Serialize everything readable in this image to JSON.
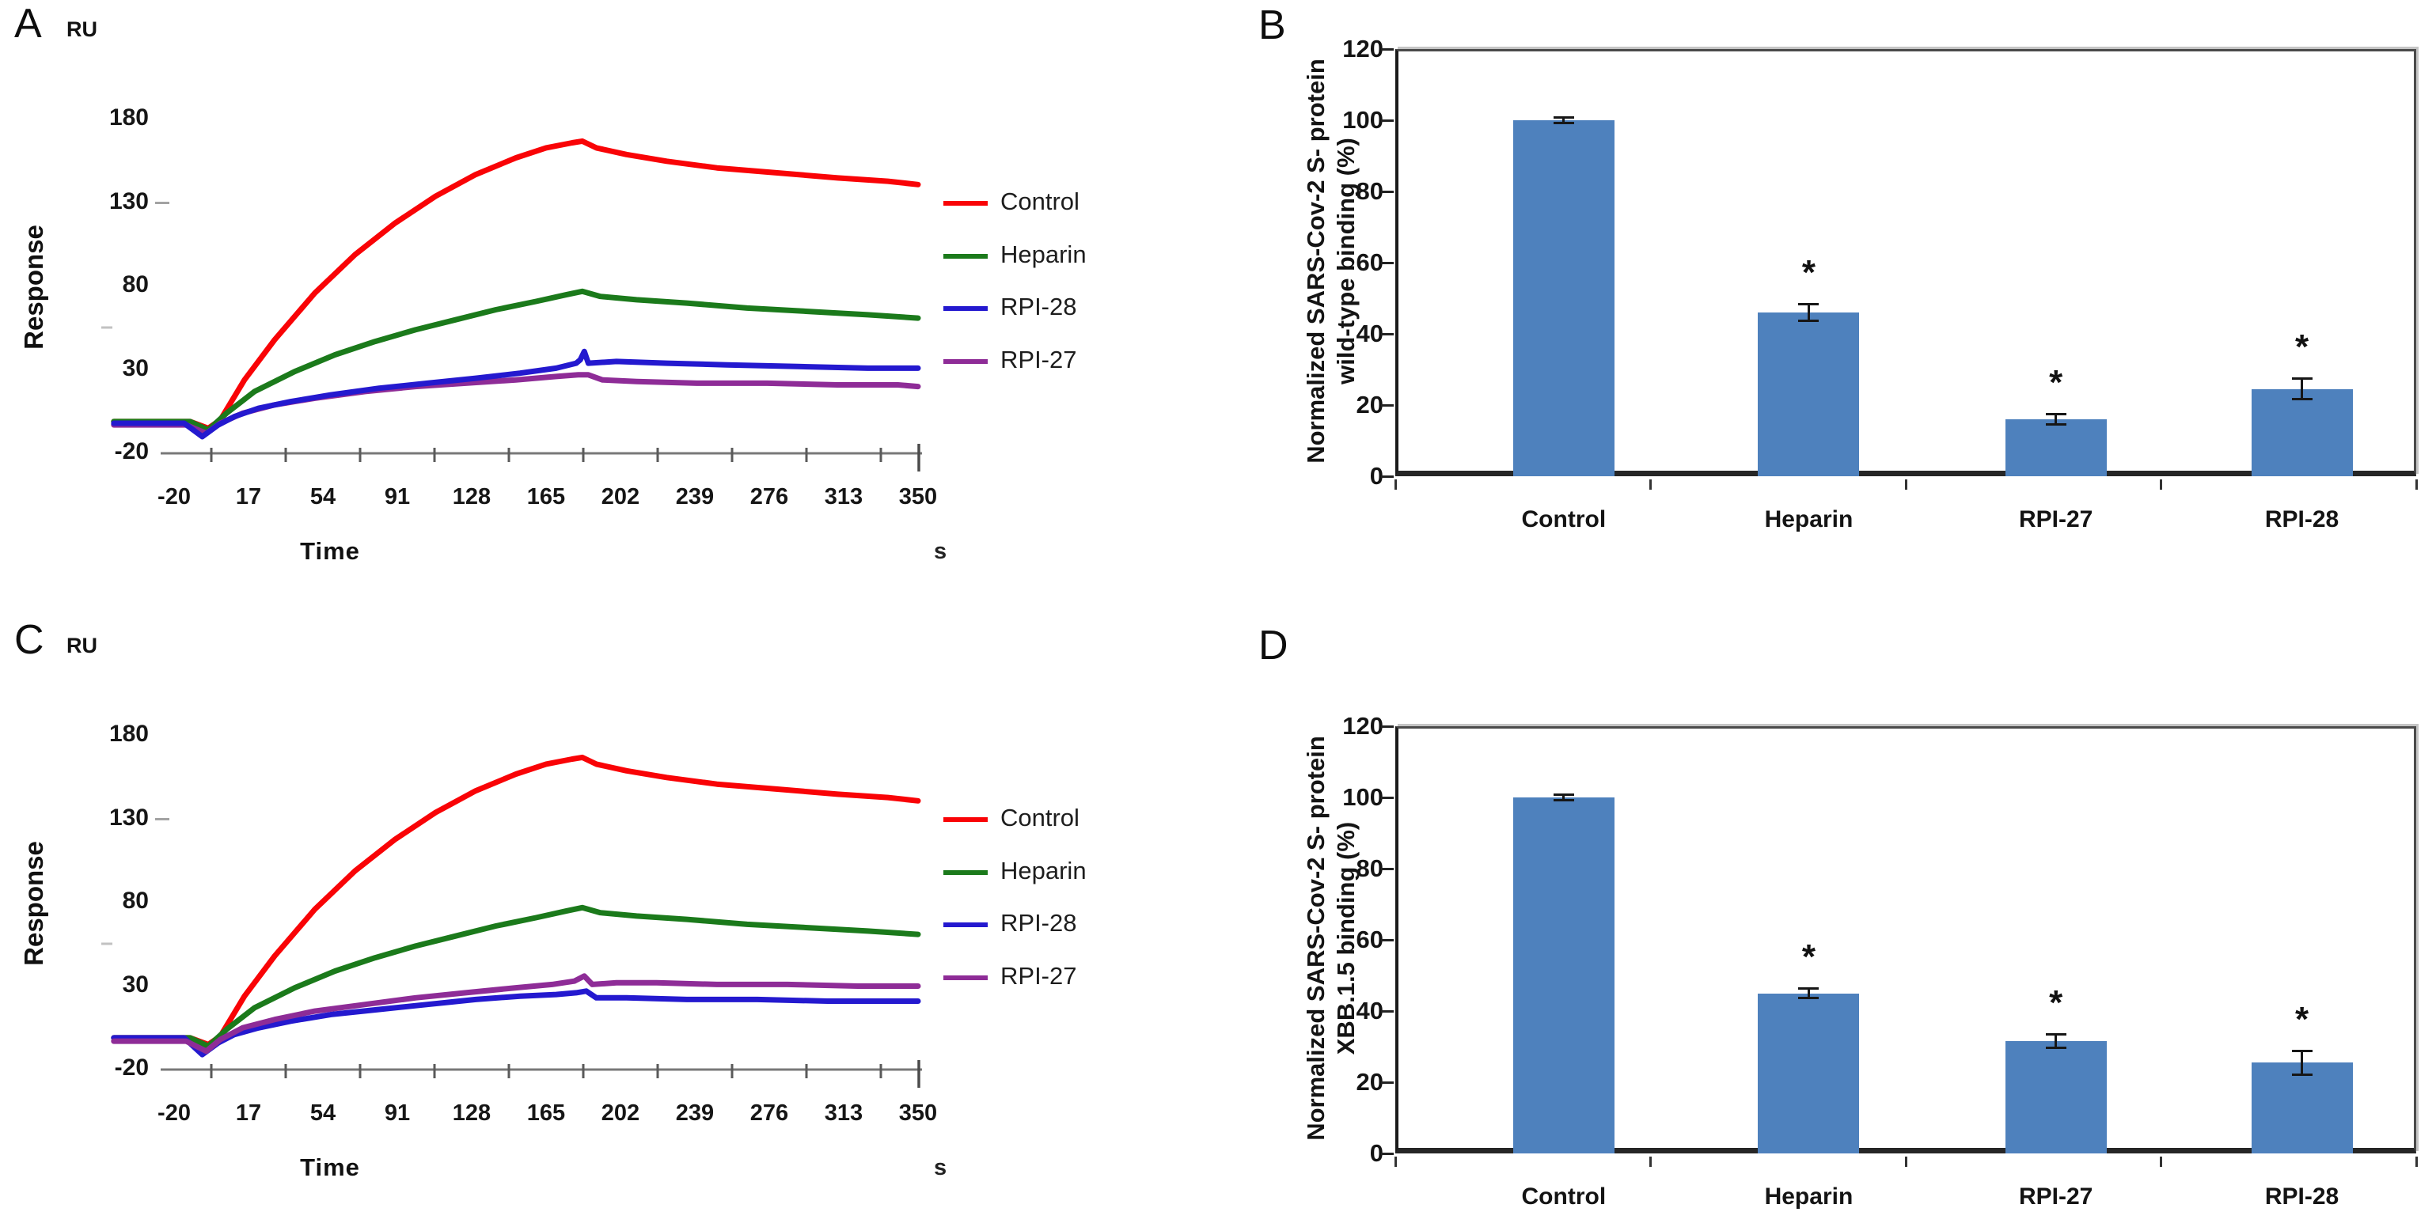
{
  "chart_data": [
    {
      "id": "A",
      "type": "line",
      "panel_label": "A",
      "y_unit_label": "RU",
      "ylabel": "Response",
      "xlabel": "Time",
      "x_unit_label": "s",
      "ylim": [
        -20,
        180
      ],
      "yticks": [
        180,
        130,
        80,
        30,
        -20
      ],
      "xticks": [
        -20,
        17,
        54,
        91,
        128,
        165,
        202,
        239,
        276,
        313,
        350
      ],
      "grid": false,
      "legend_position": "right",
      "legend_order": [
        "Control",
        "Heparin",
        "RPI-28",
        "RPI-27"
      ],
      "draw_order": [
        "Control",
        "Heparin",
        "RPI-27",
        "RPI-28"
      ],
      "series": [
        {
          "name": "Control",
          "color": "#f90306",
          "points": [
            [
              -50,
              -1
            ],
            [
              -12,
              -1
            ],
            [
              -3,
              -5
            ],
            [
              3,
              0
            ],
            [
              15,
              24
            ],
            [
              30,
              48
            ],
            [
              50,
              76
            ],
            [
              70,
              99
            ],
            [
              90,
              118
            ],
            [
              110,
              134
            ],
            [
              130,
              147
            ],
            [
              150,
              157
            ],
            [
              165,
              163
            ],
            [
              178,
              166
            ],
            [
              183,
              167
            ],
            [
              190,
              163
            ],
            [
              205,
              159
            ],
            [
              225,
              155
            ],
            [
              250,
              151
            ],
            [
              280,
              148
            ],
            [
              310,
              145
            ],
            [
              335,
              143
            ],
            [
              350,
              141
            ]
          ]
        },
        {
          "name": "Heparin",
          "color": "#1b7a1b",
          "points": [
            [
              -50,
              -1
            ],
            [
              -12,
              -1
            ],
            [
              -3,
              -6
            ],
            [
              6,
              4
            ],
            [
              20,
              17
            ],
            [
              40,
              29
            ],
            [
              60,
              39
            ],
            [
              80,
              47
            ],
            [
              100,
              54
            ],
            [
              120,
              60
            ],
            [
              140,
              66
            ],
            [
              160,
              71
            ],
            [
              175,
              75
            ],
            [
              183,
              77
            ],
            [
              192,
              74
            ],
            [
              210,
              72
            ],
            [
              235,
              70
            ],
            [
              265,
              67
            ],
            [
              295,
              65
            ],
            [
              325,
              63
            ],
            [
              350,
              61
            ]
          ]
        },
        {
          "name": "RPI-28",
          "color": "#2419cf",
          "points": [
            [
              -50,
              -2
            ],
            [
              -15,
              -2
            ],
            [
              -6,
              -10
            ],
            [
              2,
              -3
            ],
            [
              10,
              2
            ],
            [
              22,
              7
            ],
            [
              38,
              11
            ],
            [
              58,
              15
            ],
            [
              82,
              19
            ],
            [
              106,
              22
            ],
            [
              130,
              25
            ],
            [
              152,
              28
            ],
            [
              170,
              31
            ],
            [
              180,
              34
            ],
            [
              182,
              36
            ],
            [
              184,
              41
            ],
            [
              186,
              34
            ],
            [
              200,
              35
            ],
            [
              225,
              34
            ],
            [
              255,
              33
            ],
            [
              290,
              32
            ],
            [
              325,
              31
            ],
            [
              350,
              31
            ]
          ]
        },
        {
          "name": "RPI-27",
          "color": "#8e2c97",
          "points": [
            [
              -50,
              -3
            ],
            [
              -14,
              -3
            ],
            [
              -4,
              -8
            ],
            [
              3,
              -2
            ],
            [
              14,
              4
            ],
            [
              30,
              9
            ],
            [
              50,
              13
            ],
            [
              75,
              17
            ],
            [
              100,
              20
            ],
            [
              125,
              22
            ],
            [
              150,
              24
            ],
            [
              170,
              26
            ],
            [
              181,
              27
            ],
            [
              186,
              27
            ],
            [
              193,
              24
            ],
            [
              210,
              23
            ],
            [
              240,
              22
            ],
            [
              275,
              22
            ],
            [
              310,
              21
            ],
            [
              340,
              21
            ],
            [
              350,
              20
            ]
          ]
        }
      ]
    },
    {
      "id": "B",
      "type": "bar",
      "panel_label": "B",
      "ylabel_lines": [
        "Normalized SARS-Cov-2 S- protein",
        "wild-type binding (%)"
      ],
      "ylim": [
        0,
        120
      ],
      "yticks": [
        120,
        100,
        80,
        60,
        40,
        20,
        0
      ],
      "categories": [
        "Control",
        "Heparin",
        "RPI-27",
        "RPI-28"
      ],
      "values": [
        100,
        46,
        16,
        24.5
      ],
      "errors": [
        0.8,
        2.5,
        1.5,
        3
      ],
      "significance": [
        "",
        "*",
        "*",
        "*"
      ],
      "bar_color": "#4e81bd",
      "grid": false
    },
    {
      "id": "C",
      "type": "line",
      "panel_label": "C",
      "y_unit_label": "RU",
      "ylabel": "Response",
      "xlabel": "Time",
      "x_unit_label": "s",
      "ylim": [
        -20,
        180
      ],
      "yticks": [
        180,
        130,
        80,
        30,
        -20
      ],
      "xticks": [
        -20,
        17,
        54,
        91,
        128,
        165,
        202,
        239,
        276,
        313,
        350
      ],
      "grid": false,
      "legend_position": "right",
      "legend_order": [
        "Control",
        "Heparin",
        "RPI-28",
        "RPI-27"
      ],
      "draw_order": [
        "Control",
        "Heparin",
        "RPI-28",
        "RPI-27"
      ],
      "series": [
        {
          "name": "Control",
          "color": "#f90306",
          "points": [
            [
              -50,
              -1
            ],
            [
              -12,
              -1
            ],
            [
              -3,
              -5
            ],
            [
              3,
              0
            ],
            [
              15,
              24
            ],
            [
              30,
              48
            ],
            [
              50,
              76
            ],
            [
              70,
              99
            ],
            [
              90,
              118
            ],
            [
              110,
              134
            ],
            [
              130,
              147
            ],
            [
              150,
              157
            ],
            [
              165,
              163
            ],
            [
              178,
              166
            ],
            [
              183,
              167
            ],
            [
              190,
              163
            ],
            [
              205,
              159
            ],
            [
              225,
              155
            ],
            [
              250,
              151
            ],
            [
              280,
              148
            ],
            [
              310,
              145
            ],
            [
              335,
              143
            ],
            [
              350,
              141
            ]
          ]
        },
        {
          "name": "Heparin",
          "color": "#1b7a1b",
          "points": [
            [
              -50,
              -1
            ],
            [
              -12,
              -1
            ],
            [
              -3,
              -6
            ],
            [
              6,
              4
            ],
            [
              20,
              17
            ],
            [
              40,
              29
            ],
            [
              60,
              39
            ],
            [
              80,
              47
            ],
            [
              100,
              54
            ],
            [
              120,
              60
            ],
            [
              140,
              66
            ],
            [
              160,
              71
            ],
            [
              175,
              75
            ],
            [
              183,
              77
            ],
            [
              192,
              74
            ],
            [
              210,
              72
            ],
            [
              235,
              70
            ],
            [
              265,
              67
            ],
            [
              295,
              65
            ],
            [
              325,
              63
            ],
            [
              350,
              61
            ]
          ]
        },
        {
          "name": "RPI-28",
          "color": "#2419cf",
          "points": [
            [
              -50,
              -1
            ],
            [
              -15,
              -1
            ],
            [
              -6,
              -11
            ],
            [
              2,
              -4
            ],
            [
              10,
              1
            ],
            [
              22,
              5
            ],
            [
              38,
              9
            ],
            [
              58,
              13
            ],
            [
              82,
              16
            ],
            [
              106,
              19
            ],
            [
              130,
              22
            ],
            [
              152,
              24
            ],
            [
              170,
              25
            ],
            [
              180,
              26
            ],
            [
              185,
              27
            ],
            [
              190,
              23
            ],
            [
              205,
              23
            ],
            [
              235,
              22
            ],
            [
              270,
              22
            ],
            [
              305,
              21
            ],
            [
              340,
              21
            ],
            [
              350,
              21
            ]
          ]
        },
        {
          "name": "RPI-27",
          "color": "#8e2c97",
          "points": [
            [
              -50,
              -3
            ],
            [
              -14,
              -3
            ],
            [
              -4,
              -9
            ],
            [
              3,
              -2
            ],
            [
              14,
              5
            ],
            [
              30,
              10
            ],
            [
              50,
              15
            ],
            [
              75,
              19
            ],
            [
              100,
              23
            ],
            [
              125,
              26
            ],
            [
              150,
              29
            ],
            [
              168,
              31
            ],
            [
              179,
              33
            ],
            [
              184,
              36
            ],
            [
              188,
              31
            ],
            [
              200,
              32
            ],
            [
              220,
              32
            ],
            [
              250,
              31
            ],
            [
              285,
              31
            ],
            [
              320,
              30
            ],
            [
              350,
              30
            ]
          ]
        }
      ]
    },
    {
      "id": "D",
      "type": "bar",
      "panel_label": "D",
      "ylabel_lines": [
        "Normalized SARS-Cov-2 S- protein",
        "XBB.1.5 binding (%)"
      ],
      "ylim": [
        0,
        120
      ],
      "yticks": [
        120,
        100,
        80,
        60,
        40,
        20,
        0
      ],
      "categories": [
        "Control",
        "Heparin",
        "RPI-27",
        "RPI-28"
      ],
      "values": [
        100,
        45,
        31.5,
        25.5
      ],
      "errors": [
        0.8,
        1.5,
        2,
        3.5
      ],
      "significance": [
        "",
        "*",
        "*",
        "*"
      ],
      "bar_color": "#4e81bd",
      "grid": false
    }
  ]
}
